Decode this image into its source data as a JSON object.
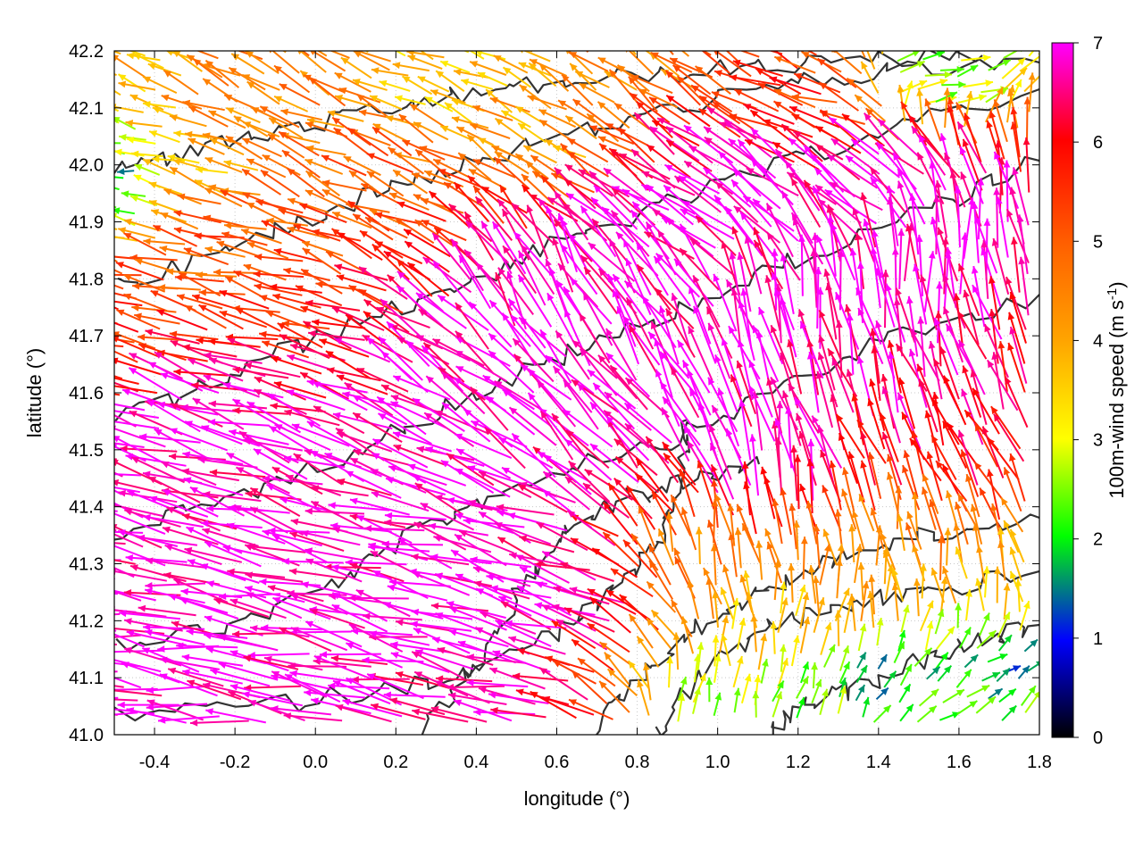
{
  "chart_data": {
    "type": "vector-field",
    "title": "",
    "xlabel": "longitude (°)",
    "ylabel": "latitude (°)",
    "xlim": [
      -0.5,
      1.8
    ],
    "ylim": [
      41.0,
      42.2
    ],
    "xticks": [
      -0.4,
      -0.2,
      0.0,
      0.2,
      0.4,
      0.6,
      0.8,
      1.0,
      1.2,
      1.4,
      1.6,
      1.8
    ],
    "xtick_labels": [
      "-0.4",
      "-0.2",
      "0.0",
      "0.2",
      "0.4",
      "0.6",
      "0.8",
      "1.0",
      "1.2",
      "1.4",
      "1.6",
      "1.8"
    ],
    "yticks": [
      41.0,
      41.1,
      41.2,
      41.3,
      41.4,
      41.5,
      41.6,
      41.7,
      41.8,
      41.9,
      42.0,
      42.1,
      42.2
    ],
    "ytick_labels": [
      "41.0",
      "41.1",
      "41.2",
      "41.3",
      "41.4",
      "41.5",
      "41.6",
      "41.7",
      "41.8",
      "41.9",
      "42.0",
      "42.1",
      "42.2"
    ],
    "grid": true,
    "colorbar": {
      "label_main": "100m-wind speed (m s",
      "label_sup": "-1",
      "label_end": ")",
      "range": [
        0,
        7
      ],
      "ticks": [
        "0",
        "1",
        "2",
        "3",
        "4",
        "5",
        "6",
        "7"
      ],
      "colors": [
        "#000000",
        "#0000ff",
        "#00ff00",
        "#ffff00",
        "#ffa500",
        "#ff6000",
        "#ff0000",
        "#ff00ff"
      ],
      "color_stops": [
        0,
        0.14,
        0.29,
        0.43,
        0.57,
        0.71,
        0.86,
        1.0
      ]
    },
    "vectors": [
      {
        "lon": -0.45,
        "lat": 41.05,
        "u": -7.5,
        "v": 1.0,
        "speed": 7.0
      },
      {
        "lon": -0.3,
        "lat": 41.15,
        "u": -7.5,
        "v": 1.2,
        "speed": 7.0
      },
      {
        "lon": -0.1,
        "lat": 41.25,
        "u": -7.6,
        "v": 1.4,
        "speed": 7.0
      },
      {
        "lon": 0.1,
        "lat": 41.05,
        "u": -7.0,
        "v": 1.5,
        "speed": 7.0
      },
      {
        "lon": 0.2,
        "lat": 41.35,
        "u": -7.2,
        "v": 1.6,
        "speed": 7.0
      },
      {
        "lon": 0.35,
        "lat": 41.2,
        "u": -7.0,
        "v": 1.4,
        "speed": 7.0
      },
      {
        "lon": 0.5,
        "lat": 41.1,
        "u": -6.8,
        "v": 1.5,
        "speed": 7.0
      },
      {
        "lon": -0.4,
        "lat": 41.45,
        "u": -7.0,
        "v": 1.8,
        "speed": 7.0
      },
      {
        "lon": -0.2,
        "lat": 41.55,
        "u": -6.5,
        "v": 2.0,
        "speed": 7.0
      },
      {
        "lon": 0.05,
        "lat": 41.5,
        "u": -6.5,
        "v": 2.2,
        "speed": 7.0
      },
      {
        "lon": 0.3,
        "lat": 41.45,
        "u": -6.0,
        "v": 2.4,
        "speed": 7.0
      },
      {
        "lon": 0.55,
        "lat": 41.35,
        "u": -6.0,
        "v": 2.0,
        "speed": 7.0
      },
      {
        "lon": 0.7,
        "lat": 41.25,
        "u": -5.5,
        "v": 1.8,
        "speed": 7.0
      },
      {
        "lon": 0.45,
        "lat": 41.6,
        "u": -4.5,
        "v": 3.5,
        "speed": 7.0
      },
      {
        "lon": 0.65,
        "lat": 41.55,
        "u": -4.0,
        "v": 4.0,
        "speed": 7.0
      },
      {
        "lon": 0.85,
        "lat": 41.5,
        "u": -3.5,
        "v": 4.5,
        "speed": 7.0
      },
      {
        "lon": 0.6,
        "lat": 41.75,
        "u": -2.5,
        "v": 5.0,
        "speed": 7.0
      },
      {
        "lon": 0.8,
        "lat": 41.7,
        "u": -3.0,
        "v": 4.8,
        "speed": 7.0
      },
      {
        "lon": 1.0,
        "lat": 41.6,
        "u": -2.5,
        "v": 5.2,
        "speed": 7.0
      },
      {
        "lon": 1.2,
        "lat": 41.7,
        "u": -1.0,
        "v": 5.5,
        "speed": 7.0
      },
      {
        "lon": 1.45,
        "lat": 41.75,
        "u": -0.5,
        "v": 5.5,
        "speed": 7.0
      },
      {
        "lon": 1.65,
        "lat": 41.85,
        "u": -0.5,
        "v": 5.0,
        "speed": 7.0
      },
      {
        "lon": 0.9,
        "lat": 41.9,
        "u": -4.5,
        "v": 3.0,
        "speed": 7.0
      },
      {
        "lon": 1.1,
        "lat": 41.95,
        "u": -3.5,
        "v": 3.0,
        "speed": 7.0
      },
      {
        "lon": 1.4,
        "lat": 41.95,
        "u": -3.0,
        "v": 2.5,
        "speed": 7.0
      },
      {
        "lon": 1.15,
        "lat": 41.45,
        "u": -1.0,
        "v": 5.0,
        "speed": 7.0
      },
      {
        "lon": 1.55,
        "lat": 41.55,
        "u": -1.5,
        "v": 4.0,
        "speed": 6.5
      },
      {
        "lon": 1.7,
        "lat": 41.45,
        "u": -2.0,
        "v": 3.5,
        "speed": 6.0
      },
      {
        "lon": -0.45,
        "lat": 41.75,
        "u": -4.0,
        "v": 1.0,
        "speed": 5.5
      },
      {
        "lon": -0.2,
        "lat": 41.85,
        "u": -4.0,
        "v": 1.0,
        "speed": 5.0
      },
      {
        "lon": 0.0,
        "lat": 41.7,
        "u": -4.5,
        "v": 1.2,
        "speed": 5.8
      },
      {
        "lon": -0.35,
        "lat": 42.0,
        "u": -3.0,
        "v": 1.0,
        "speed": 4.0
      },
      {
        "lon": -0.1,
        "lat": 42.1,
        "u": -3.0,
        "v": 1.5,
        "speed": 4.5
      },
      {
        "lon": 0.15,
        "lat": 41.95,
        "u": -3.5,
        "v": 1.5,
        "speed": 5.0
      },
      {
        "lon": 0.35,
        "lat": 42.15,
        "u": -2.5,
        "v": 1.0,
        "speed": 3.5
      },
      {
        "lon": 0.6,
        "lat": 42.05,
        "u": -2.5,
        "v": 1.5,
        "speed": 4.0
      },
      {
        "lon": 0.85,
        "lat": 42.15,
        "u": -2.0,
        "v": 1.5,
        "speed": 4.5
      },
      {
        "lon": 1.25,
        "lat": 42.1,
        "u": -3.0,
        "v": 1.0,
        "speed": 5.5
      },
      {
        "lon": 1.55,
        "lat": 42.15,
        "u": 2.0,
        "v": 0.5,
        "speed": 2.5
      },
      {
        "lon": -0.45,
        "lat": 41.98,
        "u": -2.0,
        "v": 0.3,
        "speed": 1.8
      },
      {
        "lon": 0.95,
        "lat": 41.3,
        "u": -0.5,
        "v": 3.5,
        "speed": 4.5
      },
      {
        "lon": 1.1,
        "lat": 41.15,
        "u": 0.0,
        "v": 3.0,
        "speed": 3.5
      },
      {
        "lon": 1.3,
        "lat": 41.2,
        "u": 0.5,
        "v": 3.5,
        "speed": 4.0
      },
      {
        "lon": 1.5,
        "lat": 41.3,
        "u": -0.5,
        "v": 3.5,
        "speed": 4.5
      },
      {
        "lon": 1.7,
        "lat": 41.25,
        "u": -0.5,
        "v": 3.0,
        "speed": 3.8
      },
      {
        "lon": 1.0,
        "lat": 41.05,
        "u": 0.5,
        "v": 2.0,
        "speed": 2.8
      },
      {
        "lon": 1.2,
        "lat": 41.04,
        "u": 0.5,
        "v": 1.5,
        "speed": 2.3
      },
      {
        "lon": 1.4,
        "lat": 41.1,
        "u": 1.0,
        "v": 1.2,
        "speed": 1.8
      },
      {
        "lon": 1.55,
        "lat": 41.05,
        "u": 1.5,
        "v": 1.0,
        "speed": 2.0
      },
      {
        "lon": 1.7,
        "lat": 41.12,
        "u": 1.5,
        "v": 1.0,
        "speed": 1.7
      }
    ]
  }
}
